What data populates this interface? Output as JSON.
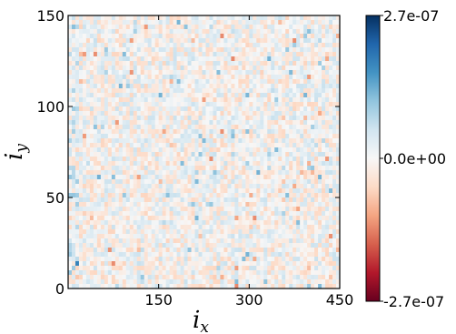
{
  "chart_data": {
    "type": "heatmap",
    "xlabel": "i",
    "xlabel_sub": "x",
    "ylabel": "i",
    "ylabel_sub": "y",
    "xlim": [
      0,
      450
    ],
    "ylim": [
      0,
      150
    ],
    "xticks": [
      150,
      300,
      450
    ],
    "xtick_labels": [
      "150",
      "300",
      "450"
    ],
    "yticks": [
      0,
      50,
      100,
      150
    ],
    "ytick_labels": [
      "0",
      "50",
      "100",
      "150"
    ],
    "grid": false,
    "colormap": "RdBu",
    "colorbar": {
      "min": -2.7e-07,
      "max": 2.7e-07,
      "ticks": [
        2.7e-07,
        0,
        -2.7e-07
      ],
      "tick_labels": [
        "2.7e-07",
        "0.0e+00",
        "-2.7e-07"
      ],
      "colors": [
        "#67001f",
        "#b2182b",
        "#d6604d",
        "#f4a582",
        "#fddbc7",
        "#f7f7f7",
        "#d1e5f0",
        "#92c5de",
        "#4393c3",
        "#2166ac",
        "#053061"
      ]
    },
    "data_description_values": {
      "typical_range": [
        -6e-08,
        6e-08
      ],
      "center_value": 0
    }
  }
}
